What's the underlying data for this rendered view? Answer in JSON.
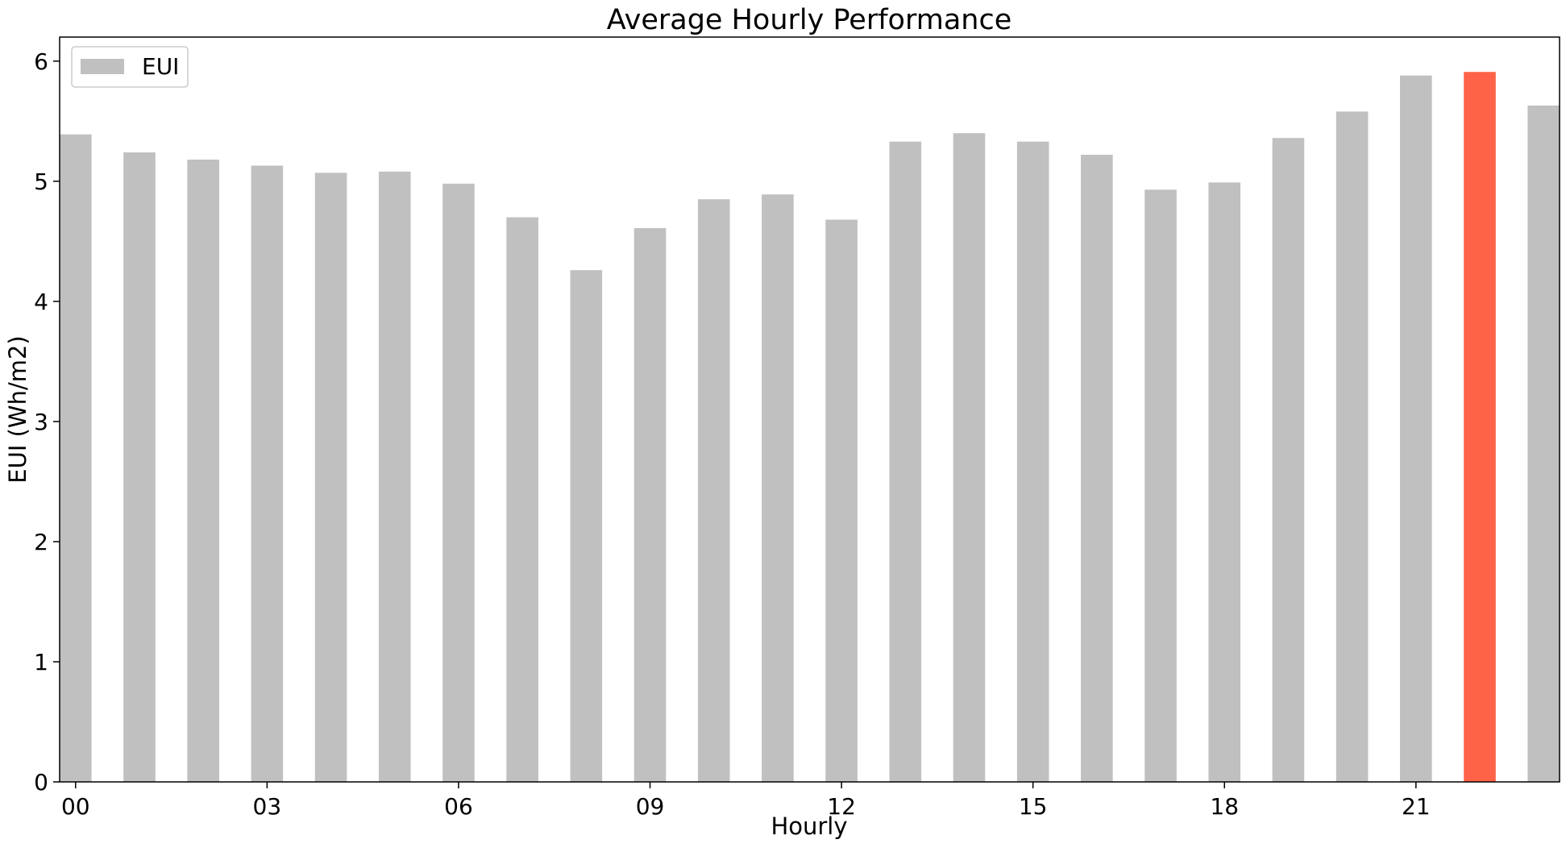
{
  "chart_data": {
    "type": "bar",
    "title": "Average Hourly Performance",
    "xlabel": "Hourly",
    "ylabel": "EUI (Wh/m2)",
    "ylim": [
      0,
      6.2
    ],
    "yticks": [
      0,
      1,
      2,
      3,
      4,
      5,
      6
    ],
    "categories": [
      "00",
      "01",
      "02",
      "03",
      "04",
      "05",
      "06",
      "07",
      "08",
      "09",
      "10",
      "11",
      "12",
      "13",
      "14",
      "15",
      "16",
      "17",
      "18",
      "19",
      "20",
      "21",
      "22",
      "23"
    ],
    "xtick_labels_shown": [
      "00",
      "03",
      "06",
      "09",
      "12",
      "15",
      "18",
      "21"
    ],
    "series": [
      {
        "name": "EUI",
        "values": [
          5.39,
          5.24,
          5.18,
          5.13,
          5.07,
          5.08,
          4.98,
          4.7,
          4.26,
          4.61,
          4.85,
          4.89,
          4.68,
          5.33,
          5.4,
          5.33,
          5.22,
          4.93,
          4.99,
          5.36,
          5.58,
          5.88,
          5.91,
          5.63
        ]
      }
    ],
    "highlight_index": 22,
    "colors": {
      "bar": "#c0c0c0",
      "highlight": "#ff6347",
      "axis": "#000000"
    },
    "legend": {
      "position": "top-left",
      "entries": [
        "EUI"
      ]
    },
    "grid": false
  }
}
